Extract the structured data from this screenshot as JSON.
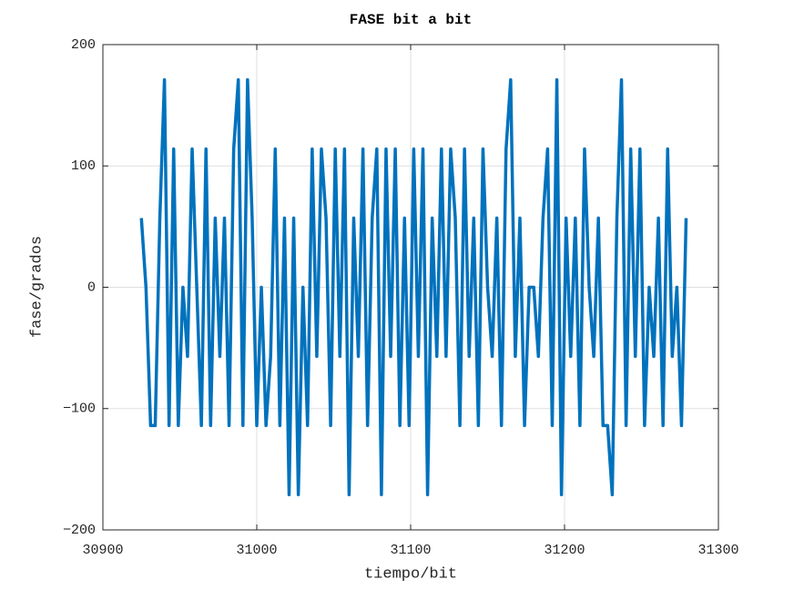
{
  "chart_data": {
    "type": "line",
    "title": "FASE bit a bit",
    "xlabel": "tiempo/bit",
    "ylabel": "fase/grados",
    "x": [
      30925,
      30928,
      30931,
      30934,
      30937,
      30940,
      30943,
      30946,
      30949,
      30952,
      30955,
      30958,
      30961,
      30964,
      30967,
      30970,
      30973,
      30976,
      30979,
      30982,
      30985,
      30988,
      30991,
      30994,
      30997,
      31000,
      31003,
      31006,
      31009,
      31012,
      31015,
      31018,
      31021,
      31024,
      31027,
      31030,
      31033,
      31036,
      31039,
      31042,
      31045,
      31048,
      31051,
      31054,
      31057,
      31060,
      31063,
      31066,
      31069,
      31072,
      31075,
      31078,
      31081,
      31084,
      31087,
      31090,
      31093,
      31096,
      31099,
      31102,
      31105,
      31108,
      31111,
      31114,
      31117,
      31120,
      31123,
      31126,
      31129,
      31132,
      31135,
      31138,
      31141,
      31144,
      31147,
      31150,
      31153,
      31156,
      31159,
      31162,
      31165,
      31168,
      31171,
      31174,
      31177,
      31180,
      31183,
      31186,
      31189,
      31192,
      31195,
      31198,
      31201,
      31204,
      31207,
      31210,
      31213,
      31216,
      31219,
      31222,
      31225,
      31228,
      31231,
      31234,
      31237,
      31240,
      31243,
      31246,
      31249,
      31252,
      31255,
      31258,
      31261,
      31264,
      31267,
      31270,
      31273,
      31276,
      31279
    ],
    "values": [
      57,
      0,
      -114,
      -114,
      57,
      171,
      -114,
      114,
      -114,
      0,
      -57,
      114,
      0,
      -114,
      114,
      -114,
      57,
      -57,
      57,
      -114,
      114,
      171,
      -114,
      171,
      57,
      -114,
      0,
      -114,
      -57,
      114,
      -114,
      57,
      -171,
      57,
      -171,
      0,
      -114,
      114,
      -57,
      114,
      57,
      -114,
      114,
      -57,
      114,
      -171,
      57,
      -57,
      114,
      -114,
      57,
      114,
      -171,
      114,
      -57,
      114,
      -114,
      57,
      -114,
      114,
      -57,
      114,
      -171,
      57,
      -57,
      114,
      -57,
      114,
      57,
      -114,
      114,
      -57,
      57,
      -114,
      114,
      0,
      -57,
      57,
      -114,
      114,
      171,
      -57,
      57,
      -114,
      0,
      0,
      -57,
      57,
      114,
      -114,
      171,
      -171,
      57,
      -57,
      57,
      -114,
      114,
      0,
      -57,
      57,
      -114,
      -114,
      -171,
      57,
      171,
      -114,
      114,
      -57,
      114,
      -114,
      0,
      -57,
      57,
      -114,
      114,
      -57,
      0,
      -114,
      57
    ],
    "color": "#0072bd",
    "xlim": [
      30900,
      31300
    ],
    "xticks": [
      30900,
      31000,
      31100,
      31200,
      31300
    ],
    "ylim": [
      -200,
      200
    ],
    "yticks": [
      {
        "value": -200,
        "label": "−200"
      },
      {
        "value": -100,
        "label": "−100"
      },
      0,
      100,
      200
    ],
    "grid": true
  }
}
